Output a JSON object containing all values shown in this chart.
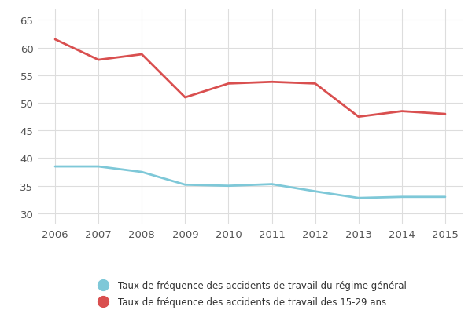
{
  "years": [
    2006,
    2007,
    2008,
    2009,
    2010,
    2011,
    2012,
    2013,
    2014,
    2015
  ],
  "general_regime": [
    38.5,
    38.5,
    37.5,
    35.2,
    35.0,
    35.3,
    34.0,
    32.8,
    33.0,
    33.0
  ],
  "young_15_29": [
    61.5,
    57.8,
    58.8,
    51.0,
    53.5,
    53.8,
    53.5,
    47.5,
    48.5,
    48.0
  ],
  "general_color": "#7EC8D8",
  "young_color": "#D94F4F",
  "bg_color": "#ffffff",
  "grid_color": "#dddddd",
  "legend_general": "Taux de fréquence des accidents de travail du régime général",
  "legend_young": "Taux de fréquence des accidents de travail des 15-29 ans",
  "ylim_min": 28,
  "ylim_max": 67,
  "yticks": [
    30,
    35,
    40,
    45,
    50,
    55,
    60,
    65
  ],
  "linewidth": 2.0,
  "legend_marker_size": 12,
  "legend_fontsize": 8.5,
  "tick_fontsize": 9.5
}
